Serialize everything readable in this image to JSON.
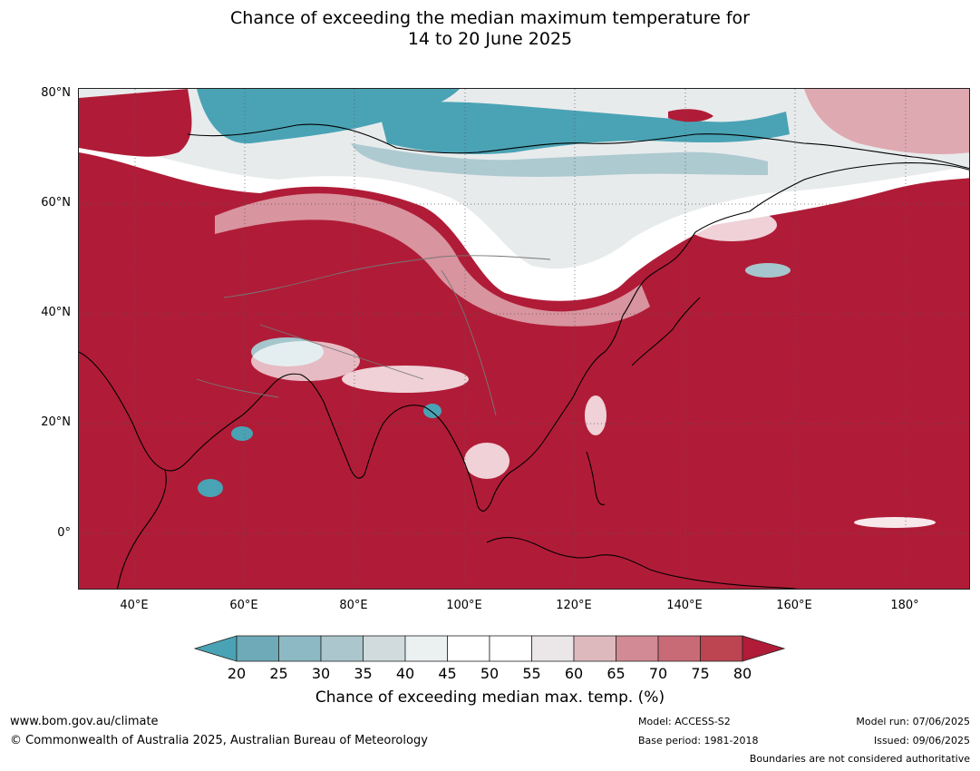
{
  "title_line1": "Chance of exceeding the median maximum temperature for",
  "title_line2": "14 to 20 June 2025",
  "lat_labels": [
    "80°N",
    "60°N",
    "40°N",
    "20°N",
    "0°"
  ],
  "lon_labels": [
    "40°E",
    "60°E",
    "80°E",
    "100°E",
    "120°E",
    "140°E",
    "160°E",
    "180°"
  ],
  "colorbar": {
    "ticks": [
      "20",
      "25",
      "30",
      "35",
      "40",
      "45",
      "50",
      "55",
      "60",
      "65",
      "70",
      "75",
      "80"
    ],
    "colors": [
      "#4aa3b5",
      "#6eaab7",
      "#8cb9c4",
      "#abc6cc",
      "#d1dadc",
      "#ebf0f1",
      "#ffffff",
      "#ffffff",
      "#ebe6e7",
      "#ddb9be",
      "#d28a94",
      "#c96a77",
      "#bd4552",
      "#b01c37"
    ],
    "label": "Chance of exceeding median max. temp. (%)"
  },
  "palette": {
    "high": "#b01c37",
    "mid_high": "#c9606d",
    "pink": "#dfa9b1",
    "neutral": "#ffffff",
    "grey": "#e6e9ea",
    "light_teal": "#a6c6cd",
    "teal": "#4aa3b5"
  },
  "footer": {
    "url": "www.bom.gov.au/climate",
    "copyright": "© Commonwealth of Australia 2025, Australian Bureau of Meteorology",
    "model": "Model: ACCESS-S2",
    "base_period": "Base period: 1981-2018",
    "model_run": "Model run: 07/06/2025",
    "issued": "Issued: 09/06/2025",
    "disclaimer": "Boundaries are not considered authoritative"
  }
}
